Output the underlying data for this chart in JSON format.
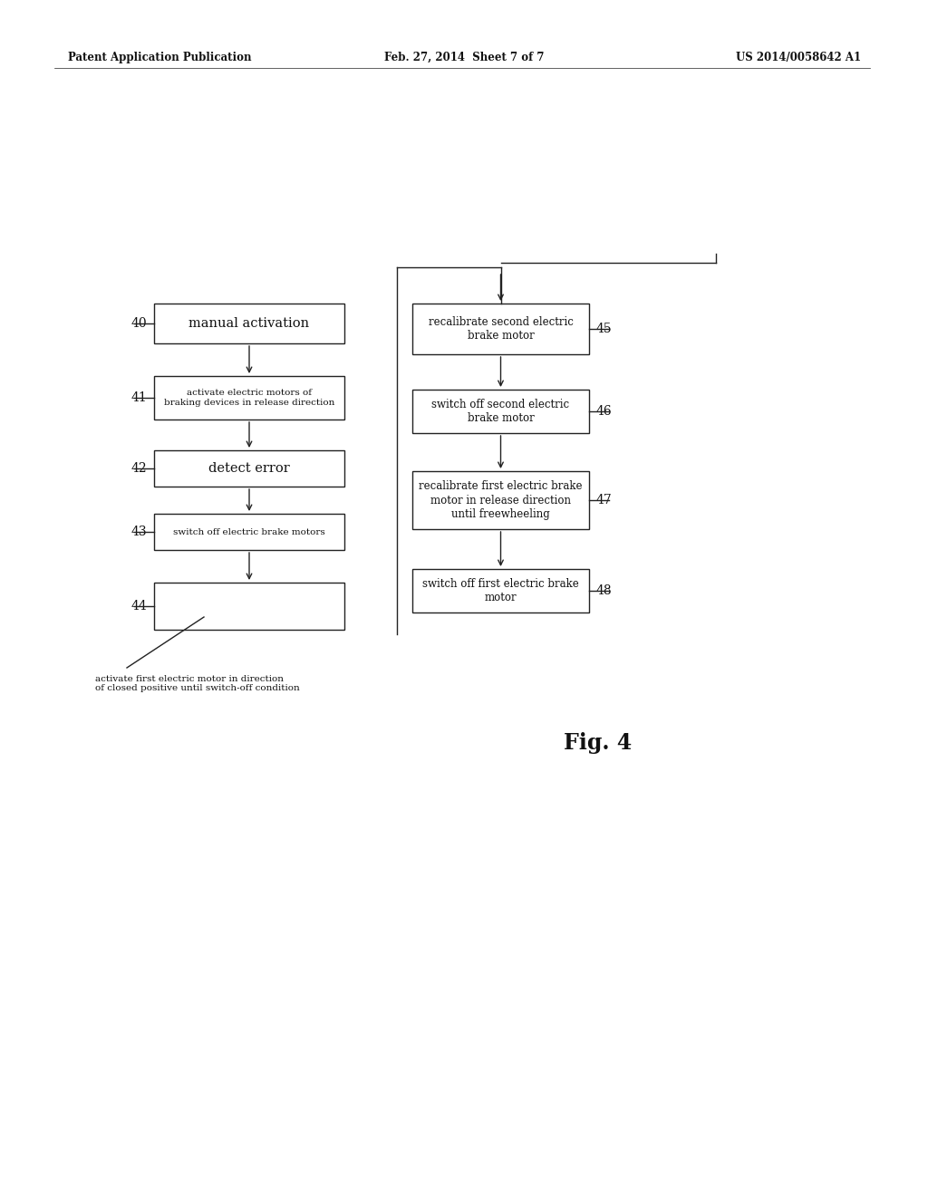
{
  "bg_color": "#f0f0f0",
  "header_left": "Patent Application Publication",
  "header_mid": "Feb. 27, 2014  Sheet 7 of 7",
  "header_right": "US 2014/0058642 A1",
  "fig_label": "Fig. 4",
  "annotation": "activate first electric motor in direction\nof closed positive until switch-off condition"
}
